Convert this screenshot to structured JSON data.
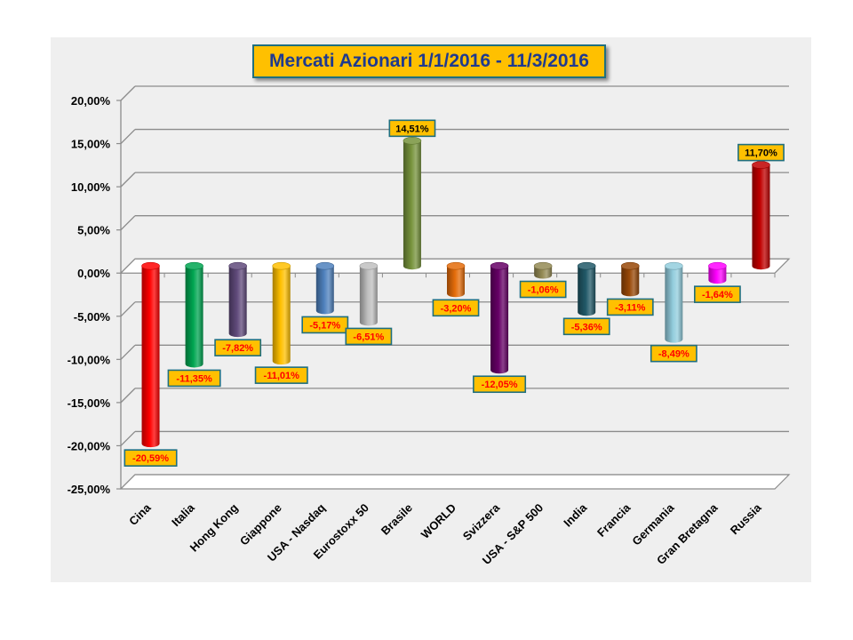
{
  "chart_data": {
    "type": "bar",
    "title": "Mercati Azionari 1/1/2016 - 11/3/2016",
    "xlabel": "",
    "ylabel": "",
    "ylim": [
      -25,
      20
    ],
    "y_ticks": [
      20,
      15,
      10,
      5,
      0,
      -5,
      -10,
      -15,
      -20,
      -25
    ],
    "y_tick_labels": [
      "20,00%",
      "15,00%",
      "10,00%",
      "5,00%",
      "0,00%",
      "-5,00%",
      "-10,00%",
      "-15,00%",
      "-20,00%",
      "-25,00%"
    ],
    "grid": true,
    "legend": "none",
    "categories": [
      "Cina",
      "Italia",
      "Hong Kong",
      "Giappone",
      "USA - Nasdaq",
      "Eurostoxx 50",
      "Brasile",
      "WORLD",
      "Svizzera",
      "USA - S&P 500",
      "India",
      "Francia",
      "Germania",
      "Gran Bretagna",
      "Russia"
    ],
    "values": [
      -20.59,
      -11.35,
      -7.82,
      -11.01,
      -5.17,
      -6.51,
      14.51,
      -3.2,
      -12.05,
      -1.06,
      -5.36,
      -3.11,
      -8.49,
      -1.64,
      11.7
    ],
    "data_labels": [
      "-20,59%",
      "-11,35%",
      "-7,82%",
      "-11,01%",
      "-5,17%",
      "-6,51%",
      "14,51%",
      "-3,20%",
      "-12,05%",
      "-1,06%",
      "-5,36%",
      "-3,11%",
      "-8,49%",
      "-1,64%",
      "11,70%"
    ],
    "colors": [
      "#ff0000",
      "#00a651",
      "#604a7b",
      "#ffc000",
      "#4f81bd",
      "#bfbfbf",
      "#77933c",
      "#e46c0a",
      "#660066",
      "#948a54",
      "#215968",
      "#984807",
      "#93cddd",
      "#ff00ff",
      "#c00000"
    ]
  }
}
